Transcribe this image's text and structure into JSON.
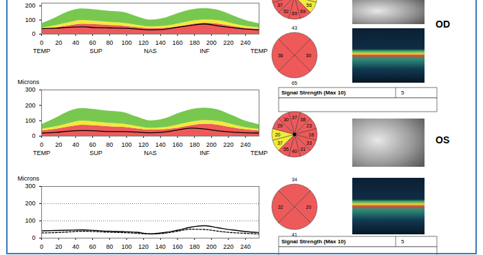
{
  "chart_data": [
    {
      "type": "line",
      "x": [
        0,
        16,
        32,
        48,
        64,
        80,
        96,
        112,
        128,
        144,
        160,
        176,
        192,
        208,
        224,
        240,
        256
      ],
      "xlim": [
        0,
        256
      ],
      "xticks": [
        0,
        20,
        40,
        60,
        80,
        100,
        120,
        140,
        160,
        180,
        200,
        220,
        240
      ],
      "ylim": [
        0,
        220
      ],
      "yticks": [
        0,
        100,
        200
      ],
      "grid": false,
      "region_labels": {
        "x": [
          0,
          64,
          128,
          192,
          256
        ],
        "labels": [
          "TEMP",
          "SUP",
          "NAS",
          "INF",
          "TEMP"
        ]
      },
      "bands": [
        {
          "color": "#ee5a5a",
          "lower": [
            0,
            0,
            0,
            0,
            0,
            0,
            0,
            0,
            0,
            0,
            0,
            0,
            0,
            0,
            0,
            0,
            0
          ],
          "upper": [
            35,
            45,
            60,
            72,
            68,
            62,
            58,
            48,
            40,
            42,
            52,
            68,
            78,
            72,
            56,
            42,
            35
          ]
        },
        {
          "color": "#f2ea3c",
          "lower": [
            35,
            45,
            60,
            72,
            68,
            62,
            58,
            48,
            40,
            42,
            52,
            68,
            78,
            72,
            56,
            42,
            35
          ],
          "upper": [
            45,
            60,
            82,
            98,
            92,
            84,
            78,
            64,
            52,
            56,
            72,
            92,
            102,
            96,
            76,
            56,
            45
          ]
        },
        {
          "color": "#78c850",
          "lower": [
            45,
            60,
            82,
            98,
            92,
            84,
            78,
            64,
            52,
            56,
            72,
            92,
            102,
            96,
            76,
            56,
            45
          ],
          "upper": [
            75,
            115,
            160,
            180,
            172,
            162,
            155,
            125,
            100,
            112,
            145,
            172,
            182,
            170,
            135,
            98,
            75
          ]
        }
      ],
      "series": [
        {
          "color": "#000000",
          "line_style": "solid",
          "values": [
            40,
            42,
            48,
            52,
            46,
            44,
            42,
            36,
            30,
            34,
            48,
            62,
            72,
            58,
            46,
            36,
            30
          ]
        }
      ]
    },
    {
      "type": "line",
      "x": [
        0,
        16,
        32,
        48,
        64,
        80,
        96,
        112,
        128,
        144,
        160,
        176,
        192,
        208,
        224,
        240,
        256
      ],
      "xlim": [
        0,
        256
      ],
      "xticks": [
        0,
        20,
        40,
        60,
        80,
        100,
        120,
        140,
        160,
        180,
        200,
        220,
        240
      ],
      "ylim": [
        0,
        300
      ],
      "yticks": [
        0,
        100,
        200,
        300
      ],
      "y_label": "Microns",
      "grid": false,
      "region_labels": {
        "x": [
          0,
          64,
          128,
          192,
          256
        ],
        "labels": [
          "TEMP",
          "SUP",
          "NAS",
          "INF",
          "TEMP"
        ]
      },
      "bands": [
        {
          "color": "#ee5a5a",
          "lower": [
            0,
            0,
            0,
            0,
            0,
            0,
            0,
            0,
            0,
            0,
            0,
            0,
            0,
            0,
            0,
            0,
            0
          ],
          "upper": [
            35,
            45,
            60,
            72,
            68,
            62,
            58,
            48,
            40,
            42,
            52,
            68,
            78,
            72,
            56,
            42,
            35
          ]
        },
        {
          "color": "#f2ea3c",
          "lower": [
            35,
            45,
            60,
            72,
            68,
            62,
            58,
            48,
            40,
            42,
            52,
            68,
            78,
            72,
            56,
            42,
            35
          ],
          "upper": [
            45,
            60,
            82,
            98,
            92,
            84,
            78,
            64,
            52,
            56,
            72,
            92,
            102,
            96,
            76,
            56,
            45
          ]
        },
        {
          "color": "#78c850",
          "lower": [
            45,
            60,
            82,
            98,
            92,
            84,
            78,
            64,
            52,
            56,
            72,
            92,
            102,
            96,
            76,
            56,
            45
          ],
          "upper": [
            75,
            115,
            160,
            180,
            172,
            162,
            155,
            125,
            100,
            112,
            145,
            172,
            182,
            170,
            135,
            98,
            75
          ]
        }
      ],
      "series": [
        {
          "color": "#000000",
          "line_style": "solid",
          "values": [
            20,
            24,
            32,
            36,
            34,
            30,
            30,
            26,
            22,
            26,
            40,
            52,
            46,
            34,
            26,
            22,
            20
          ]
        }
      ]
    },
    {
      "type": "line",
      "x": [
        0,
        16,
        32,
        48,
        64,
        80,
        96,
        112,
        128,
        144,
        160,
        176,
        192,
        208,
        224,
        240,
        256
      ],
      "xlim": [
        0,
        256
      ],
      "xticks": [
        0,
        20,
        40,
        60,
        80,
        100,
        120,
        140,
        160,
        180,
        200,
        220,
        240
      ],
      "ylim": [
        0,
        300
      ],
      "yticks": [
        0,
        100,
        200,
        300
      ],
      "y_label": "Microns",
      "grid": true,
      "series": [
        {
          "color": "#000000",
          "line_style": "solid",
          "values": [
            42,
            44,
            46,
            48,
            44,
            40,
            38,
            34,
            25,
            32,
            46,
            64,
            72,
            60,
            48,
            38,
            32
          ]
        },
        {
          "color": "#000000",
          "line_style": "dashed",
          "values": [
            30,
            32,
            36,
            40,
            38,
            34,
            32,
            28,
            24,
            28,
            40,
            52,
            50,
            40,
            32,
            28,
            24
          ]
        }
      ]
    }
  ],
  "panels": [
    {
      "label": "OD",
      "clock": {
        "values": [
          null,
          null,
          null,
          null,
          56,
          69,
          69,
          52,
          37,
          null,
          null,
          null
        ],
        "colors": [
          "#ee5a5a",
          "#ee5a5a",
          "#ee5a5a",
          "#f2ea3c",
          "#f2ea3c",
          "#ee5a5a",
          "#ee5a5a",
          "#ee5a5a",
          "#ee5a5a",
          "#ee5a5a",
          "#ee5a5a",
          "#ee5a5a"
        ]
      },
      "quadrants": {
        "top": 43,
        "right": 30,
        "bottom": 65,
        "left": 36,
        "color": "#ee5a5a"
      },
      "table": {
        "rows": [
          [
            "Signal Strength (Max 10)",
            5
          ]
        ]
      }
    },
    {
      "label": "OS",
      "clock": {
        "values": [
          37,
          38,
          23,
          16,
          33,
          31,
          40,
          55,
          37,
          20,
          29,
          30
        ],
        "colors": [
          "#ee5a5a",
          "#ee5a5a",
          "#ee5a5a",
          "#ee5a5a",
          "#ee5a5a",
          "#ee5a5a",
          "#ee5a5a",
          "#ee5a5a",
          "#f2ea3c",
          "#f2ea3c",
          "#ee5a5a",
          "#ee5a5a"
        ]
      },
      "quadrants": {
        "top": 34,
        "right": 20,
        "bottom": 41,
        "left": 32,
        "color": "#ee5a5a"
      },
      "table": {
        "rows": [
          [
            "Signal Strength (Max 10)",
            5
          ]
        ]
      }
    }
  ]
}
